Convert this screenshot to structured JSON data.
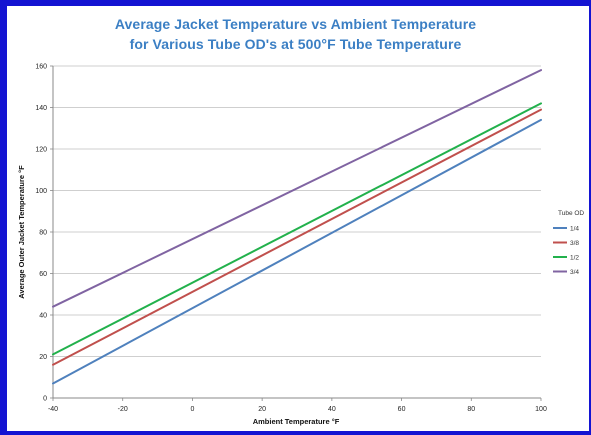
{
  "chart_data": {
    "type": "line",
    "title_line1": "Average Jacket Temperature vs Ambient Temperature",
    "title_line2": "for Various Tube OD's at 500°F Tube Temperature",
    "xlabel": "Ambient Temperature °F",
    "ylabel": "Average Outer Jacket Temperature °F",
    "xlim": [
      -40,
      100
    ],
    "ylim": [
      0,
      160
    ],
    "x_ticks": [
      -40,
      -20,
      0,
      20,
      40,
      60,
      80,
      100
    ],
    "y_ticks": [
      0,
      20,
      40,
      60,
      80,
      100,
      120,
      140,
      160
    ],
    "grid": "horizontal",
    "legend_title": "Tube OD",
    "legend_position": "right",
    "series": [
      {
        "name": "1/4",
        "color": "#4f81bd",
        "x": [
          -40,
          100
        ],
        "y": [
          7,
          134
        ]
      },
      {
        "name": "3/8",
        "color": "#c0504d",
        "x": [
          -40,
          100
        ],
        "y": [
          16,
          139
        ]
      },
      {
        "name": "1/2",
        "color": "#22b14c",
        "x": [
          -40,
          100
        ],
        "y": [
          21,
          142
        ]
      },
      {
        "name": "3/4",
        "color": "#8064a2",
        "x": [
          -40,
          100
        ],
        "y": [
          44,
          158
        ]
      }
    ]
  }
}
